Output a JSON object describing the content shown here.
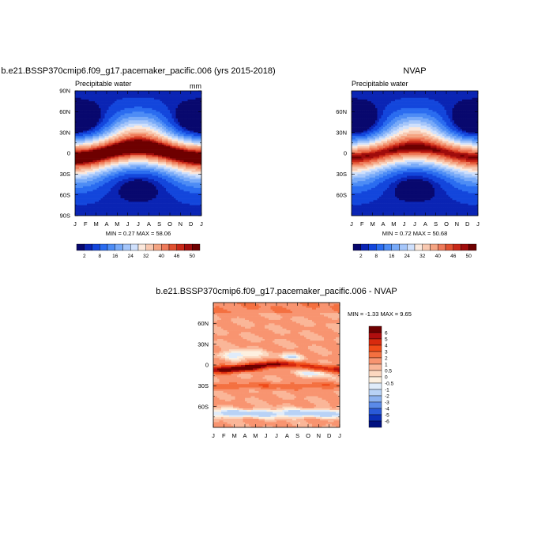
{
  "chart_data": [
    {
      "type": "heatmap",
      "id": "model",
      "title": "b.e21.BSSP370cmip6.f09_g17.pacemaker_pacific.006 (yrs 2015-2018)",
      "left_label": "Precipitable water",
      "units": "mm",
      "x_ticks": [
        "J",
        "F",
        "M",
        "A",
        "M",
        "J",
        "J",
        "A",
        "S",
        "O",
        "N",
        "D",
        "J"
      ],
      "y_ticks": [
        "90N",
        "60N",
        "30N",
        "0",
        "30S",
        "60S",
        "90S"
      ],
      "ylim": [
        -90,
        90
      ],
      "stats": "MIN =   0.27 MAX =  58.06",
      "colorbar_labels": [
        "2",
        "8",
        "16",
        "24",
        "32",
        "40",
        "46",
        "50"
      ],
      "colorbar_colors": [
        "#08086e",
        "#0a24b4",
        "#1346dc",
        "#2a6cf0",
        "#4d8cf5",
        "#78aaf8",
        "#a5c6fa",
        "#cfe0fc",
        "#fbe8dc",
        "#f8c8b0",
        "#f4a482",
        "#ee7a5a",
        "#e05030",
        "#c82818",
        "#a00c0c",
        "#6e0000"
      ],
      "model": {
        "peak": 58.06,
        "min": 0.27
      }
    },
    {
      "type": "heatmap",
      "id": "obs",
      "title": "NVAP",
      "left_label": "Precipitable water",
      "x_ticks": [
        "J",
        "F",
        "M",
        "A",
        "M",
        "J",
        "J",
        "A",
        "S",
        "O",
        "N",
        "D",
        "J"
      ],
      "y_ticks": [
        "60N",
        "30N",
        "0",
        "30S",
        "60S"
      ],
      "ylim": [
        -90,
        90
      ],
      "stats": "MIN =   0.72 MAX =  50.68",
      "colorbar_labels": [
        "2",
        "8",
        "16",
        "24",
        "32",
        "40",
        "46",
        "50"
      ],
      "model": {
        "peak": 50.68,
        "min": 0.72
      }
    },
    {
      "type": "heatmap",
      "id": "diff",
      "title": "b.e21.BSSP370cmip6.f09_g17.pacemaker_pacific.006 - NVAP",
      "x_ticks": [
        "J",
        "F",
        "M",
        "A",
        "M",
        "J",
        "J",
        "A",
        "S",
        "O",
        "N",
        "D",
        "J"
      ],
      "y_ticks": [
        "60N",
        "30N",
        "0",
        "30S",
        "60S"
      ],
      "ylim": [
        -90,
        90
      ],
      "stats": "MIN =  -1.33 MAX =   9.65",
      "colorbar_labels": [
        "6",
        "5",
        "4",
        "3",
        "2",
        "1",
        "0.5",
        "0",
        "-0.5",
        "-1",
        "-2",
        "-3",
        "-4",
        "-5",
        "-6"
      ],
      "colorbar_colors": [
        "#6e0000",
        "#b00e0e",
        "#d82a0e",
        "#f04a18",
        "#f47040",
        "#f89470",
        "#fab698",
        "#fcd8c0",
        "#fdf0e0",
        "#e0ecfa",
        "#b8d2f6",
        "#8cb2f0",
        "#5a8ae8",
        "#2a5ad8",
        "#0c30b8",
        "#001080"
      ]
    }
  ]
}
